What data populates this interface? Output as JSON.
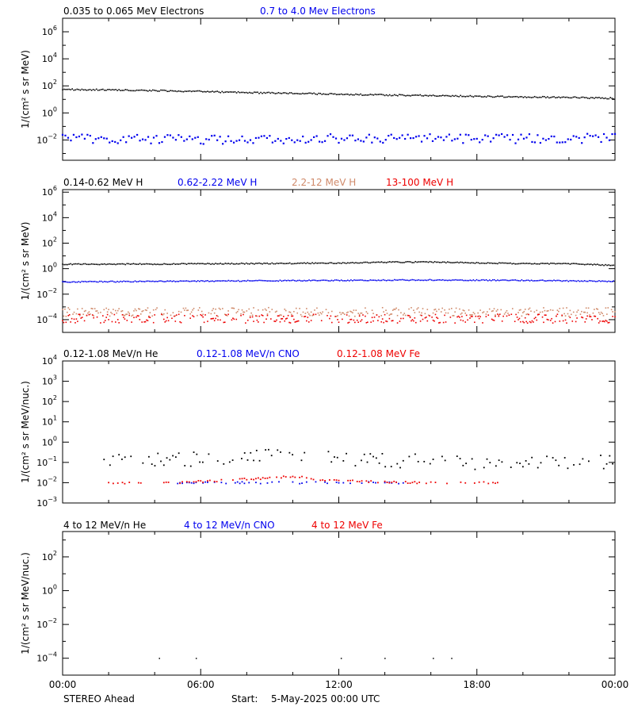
{
  "chart_data": [
    {
      "type": "scatter",
      "ylabel": "1/(cm² s sr MeV)",
      "yscale": "log",
      "ylim_exp": [
        -3.5,
        7
      ],
      "y_tick_exps": [
        -2,
        0,
        2,
        4,
        6
      ],
      "series": [
        {
          "name": "0.035 to 0.065 MeV Electrons",
          "color": "#000000",
          "points": [
            [
              0,
              55
            ],
            [
              2,
              50
            ],
            [
              4,
              45
            ],
            [
              6,
              38
            ],
            [
              8,
              32
            ],
            [
              10,
              28
            ],
            [
              12,
              24
            ],
            [
              14,
              21
            ],
            [
              16,
              19
            ],
            [
              18,
              17
            ],
            [
              20,
              15
            ],
            [
              22,
              14
            ],
            [
              24,
              12
            ]
          ]
        },
        {
          "name": "0.7 to 4.0 Mev Electrons",
          "color": "#0000ee",
          "points": [
            [
              0,
              0.012
            ],
            [
              3,
              0.012
            ],
            [
              6,
              0.011
            ],
            [
              9,
              0.012
            ],
            [
              12,
              0.012
            ],
            [
              15,
              0.012
            ],
            [
              18,
              0.012
            ],
            [
              21,
              0.013
            ],
            [
              24,
              0.013
            ]
          ]
        }
      ]
    },
    {
      "type": "scatter",
      "ylabel": "1/(cm² s sr MeV)",
      "yscale": "log",
      "ylim_exp": [
        -5,
        6.2
      ],
      "y_tick_exps": [
        -4,
        -2,
        0,
        2,
        4,
        6
      ],
      "series": [
        {
          "name": "0.14-0.62 MeV H",
          "color": "#000000",
          "points": [
            [
              0,
              2.2
            ],
            [
              4,
              2.3
            ],
            [
              8,
              2.5
            ],
            [
              12,
              2.7
            ],
            [
              14,
              3.2
            ],
            [
              16,
              3.3
            ],
            [
              18,
              2.8
            ],
            [
              20,
              2.5
            ],
            [
              22,
              2.4
            ],
            [
              24,
              1.8
            ]
          ]
        },
        {
          "name": "0.62-2.22 MeV H",
          "color": "#0000ee",
          "points": [
            [
              0,
              0.09
            ],
            [
              4,
              0.1
            ],
            [
              8,
              0.11
            ],
            [
              12,
              0.12
            ],
            [
              16,
              0.13
            ],
            [
              20,
              0.12
            ],
            [
              24,
              0.1
            ]
          ]
        },
        {
          "name": "2.2-12 MeV H",
          "color": "#d08a6a",
          "points": [
            [
              0,
              0.0004
            ],
            [
              6,
              0.0004
            ],
            [
              12,
              0.0004
            ],
            [
              18,
              0.0004
            ],
            [
              24,
              0.0004
            ]
          ]
        },
        {
          "name": "13-100 MeV H",
          "color": "#ee0000",
          "points": [
            [
              0,
              0.00012
            ],
            [
              6,
              0.00012
            ],
            [
              12,
              0.00012
            ],
            [
              18,
              0.00012
            ],
            [
              24,
              0.00012
            ]
          ]
        }
      ]
    },
    {
      "type": "scatter",
      "ylabel": "1/(cm² s sr MeV/nuc.)",
      "yscale": "log",
      "ylim_exp": [
        -3,
        4
      ],
      "y_tick_exps": [
        -3,
        -2,
        -1,
        0,
        1,
        2,
        3,
        4
      ],
      "series": [
        {
          "name": "0.12-1.08 MeV/n He",
          "color": "#000000",
          "points": [
            [
              1.8,
              0.12
            ],
            [
              4,
              0.13
            ],
            [
              6,
              0.15
            ],
            [
              8,
              0.2
            ],
            [
              10,
              0.25
            ],
            [
              12,
              0.15
            ],
            [
              14,
              0.12
            ],
            [
              16,
              0.12
            ],
            [
              18,
              0.1
            ],
            [
              20,
              0.1
            ],
            [
              22,
              0.1
            ],
            [
              24,
              0.1
            ]
          ]
        },
        {
          "name": "0.12-1.08 MeV/n CNO",
          "color": "#0000ee",
          "points": [
            [
              5,
              0.01
            ],
            [
              7,
              0.01
            ],
            [
              9,
              0.01
            ],
            [
              11,
              0.01
            ],
            [
              13,
              0.01
            ],
            [
              15,
              0.01
            ]
          ]
        },
        {
          "name": "0.12-1.08 MeV Fe",
          "color": "#ee0000",
          "points": [
            [
              2,
              0.01
            ],
            [
              5,
              0.01
            ],
            [
              8,
              0.015
            ],
            [
              10,
              0.02
            ],
            [
              12,
              0.012
            ],
            [
              16,
              0.01
            ],
            [
              19,
              0.01
            ]
          ]
        }
      ]
    },
    {
      "type": "scatter",
      "ylabel": "1/(cm² s sr MeV/nuc.)",
      "yscale": "log",
      "ylim_exp": [
        -5,
        3.5
      ],
      "y_tick_exps": [
        -4,
        -2,
        0,
        2
      ],
      "series": [
        {
          "name": "4 to 12 MeV/n He",
          "color": "#000000",
          "points": [
            [
              4.2,
              0.0001
            ],
            [
              5.8,
              0.0001
            ],
            [
              12.1,
              0.0001
            ],
            [
              14,
              0.0001
            ],
            [
              16.1,
              0.0001
            ],
            [
              16.9,
              0.0001
            ]
          ]
        },
        {
          "name": "4 to 12 MeV/n CNO",
          "color": "#0000ee",
          "points": []
        },
        {
          "name": "4 to 12 MeV Fe",
          "color": "#ee0000",
          "points": []
        }
      ]
    }
  ],
  "x_axis": {
    "range_hours": [
      0,
      24
    ],
    "ticks": [
      {
        "hour": 0,
        "label": "00:00"
      },
      {
        "hour": 6,
        "label": "06:00"
      },
      {
        "hour": 12,
        "label": "12:00"
      },
      {
        "hour": 18,
        "label": "18:00"
      },
      {
        "hour": 24,
        "label": "00:00"
      }
    ]
  },
  "footer": {
    "spacecraft": "STEREO Ahead",
    "start_label": "Start:",
    "start_value": "5-May-2025 00:00 UTC"
  }
}
